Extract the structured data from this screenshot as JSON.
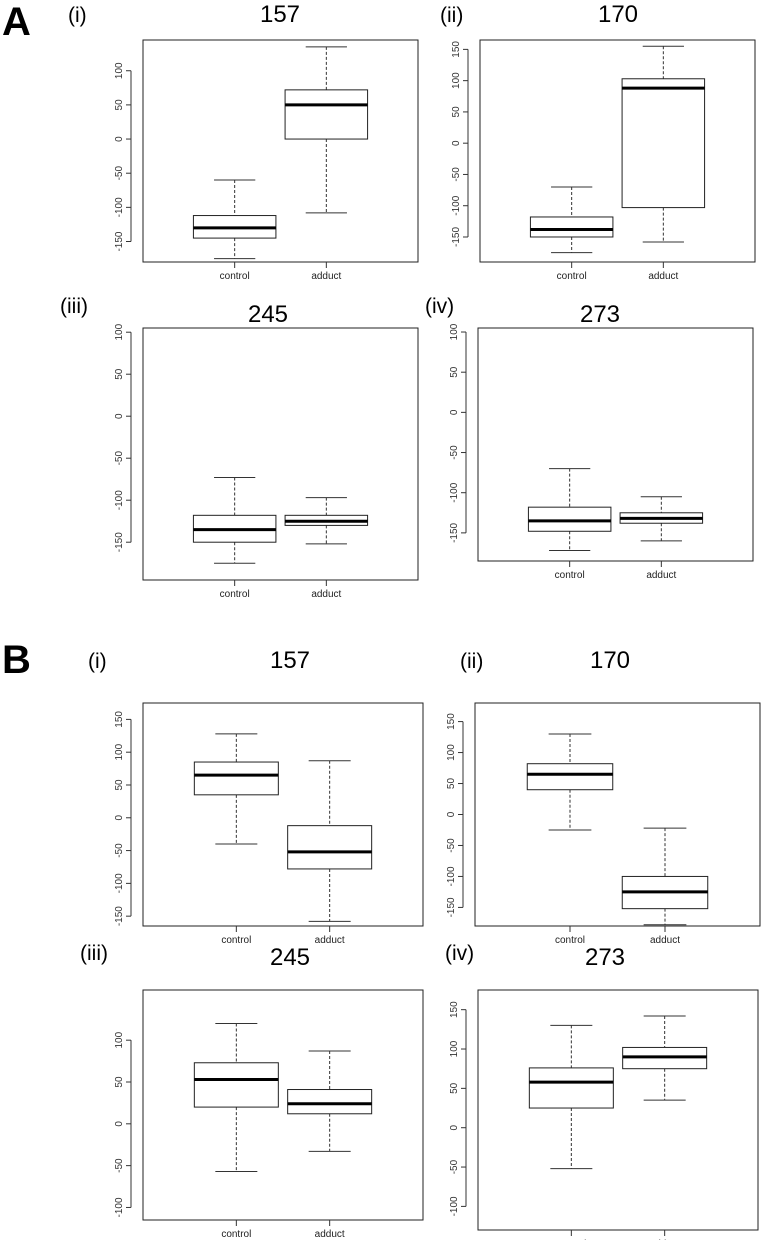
{
  "sections": [
    {
      "letter": "A"
    },
    {
      "letter": "B"
    }
  ],
  "chart_data": [
    {
      "type": "boxplot",
      "section": "A",
      "panel": "(i)",
      "title": "157",
      "categories": [
        "control",
        "adduct"
      ],
      "yticks": [
        -150,
        -100,
        -50,
        0,
        50,
        100
      ],
      "ylim": [
        -180,
        145
      ],
      "boxes": [
        {
          "min": -175,
          "q1": -145,
          "median": -130,
          "q3": -112,
          "max": -60
        },
        {
          "min": -108,
          "q1": 0,
          "median": 50,
          "q3": 72,
          "max": 135
        }
      ]
    },
    {
      "type": "boxplot",
      "section": "A",
      "panel": "(ii)",
      "title": "170",
      "categories": [
        "control",
        "adduct"
      ],
      "yticks": [
        -150,
        -100,
        -50,
        0,
        50,
        100,
        150
      ],
      "ylim": [
        -190,
        165
      ],
      "boxes": [
        {
          "min": -175,
          "q1": -150,
          "median": -138,
          "q3": -118,
          "max": -70
        },
        {
          "min": -158,
          "q1": -103,
          "median": 88,
          "q3": 103,
          "max": 155
        }
      ]
    },
    {
      "type": "boxplot",
      "section": "A",
      "panel": "(iii)",
      "title": "245",
      "categories": [
        "control",
        "adduct"
      ],
      "yticks": [
        -150,
        -100,
        -50,
        0,
        50,
        100
      ],
      "ylim": [
        -195,
        105
      ],
      "boxes": [
        {
          "min": -175,
          "q1": -150,
          "median": -135,
          "q3": -118,
          "max": -73
        },
        {
          "min": -152,
          "q1": -130,
          "median": -125,
          "q3": -118,
          "max": -97
        }
      ]
    },
    {
      "type": "boxplot",
      "section": "A",
      "panel": "(iv)",
      "title": "273",
      "categories": [
        "control",
        "adduct"
      ],
      "yticks": [
        -150,
        -100,
        -50,
        0,
        50,
        100
      ],
      "ylim": [
        -185,
        105
      ],
      "boxes": [
        {
          "min": -172,
          "q1": -148,
          "median": -135,
          "q3": -118,
          "max": -70
        },
        {
          "min": -160,
          "q1": -138,
          "median": -132,
          "q3": -125,
          "max": -105
        }
      ]
    },
    {
      "type": "boxplot",
      "section": "B",
      "panel": "(i)",
      "title": "157",
      "categories": [
        "control",
        "adduct"
      ],
      "yticks": [
        -150,
        -100,
        -50,
        0,
        50,
        100,
        150
      ],
      "ylim": [
        -165,
        175
      ],
      "boxes": [
        {
          "min": -40,
          "q1": 35,
          "median": 65,
          "q3": 85,
          "max": 128
        },
        {
          "min": -158,
          "q1": -78,
          "median": -52,
          "q3": -12,
          "max": 87
        }
      ]
    },
    {
      "type": "boxplot",
      "section": "B",
      "panel": "(ii)",
      "title": "170",
      "categories": [
        "control",
        "adduct"
      ],
      "yticks": [
        -150,
        -100,
        -50,
        0,
        50,
        100,
        150
      ],
      "ylim": [
        -180,
        180
      ],
      "boxes": [
        {
          "min": -25,
          "q1": 40,
          "median": 65,
          "q3": 82,
          "max": 130
        },
        {
          "min": -178,
          "q1": -152,
          "median": -125,
          "q3": -100,
          "max": -22
        }
      ]
    },
    {
      "type": "boxplot",
      "section": "B",
      "panel": "(iii)",
      "title": "245",
      "categories": [
        "control",
        "adduct"
      ],
      "yticks": [
        -100,
        -50,
        0,
        50,
        100
      ],
      "ylim": [
        -115,
        160
      ],
      "boxes": [
        {
          "min": -57,
          "q1": 20,
          "median": 53,
          "q3": 73,
          "max": 120
        },
        {
          "min": -33,
          "q1": 12,
          "median": 24,
          "q3": 41,
          "max": 87
        }
      ]
    },
    {
      "type": "boxplot",
      "section": "B",
      "panel": "(iv)",
      "title": "273",
      "categories": [
        "control",
        "adduct"
      ],
      "yticks": [
        -100,
        -50,
        0,
        50,
        100,
        150
      ],
      "ylim": [
        -130,
        175
      ],
      "boxes": [
        {
          "min": -52,
          "q1": 25,
          "median": 58,
          "q3": 76,
          "max": 130
        },
        {
          "min": 35,
          "q1": 75,
          "median": 90,
          "q3": 102,
          "max": 142
        }
      ]
    }
  ]
}
